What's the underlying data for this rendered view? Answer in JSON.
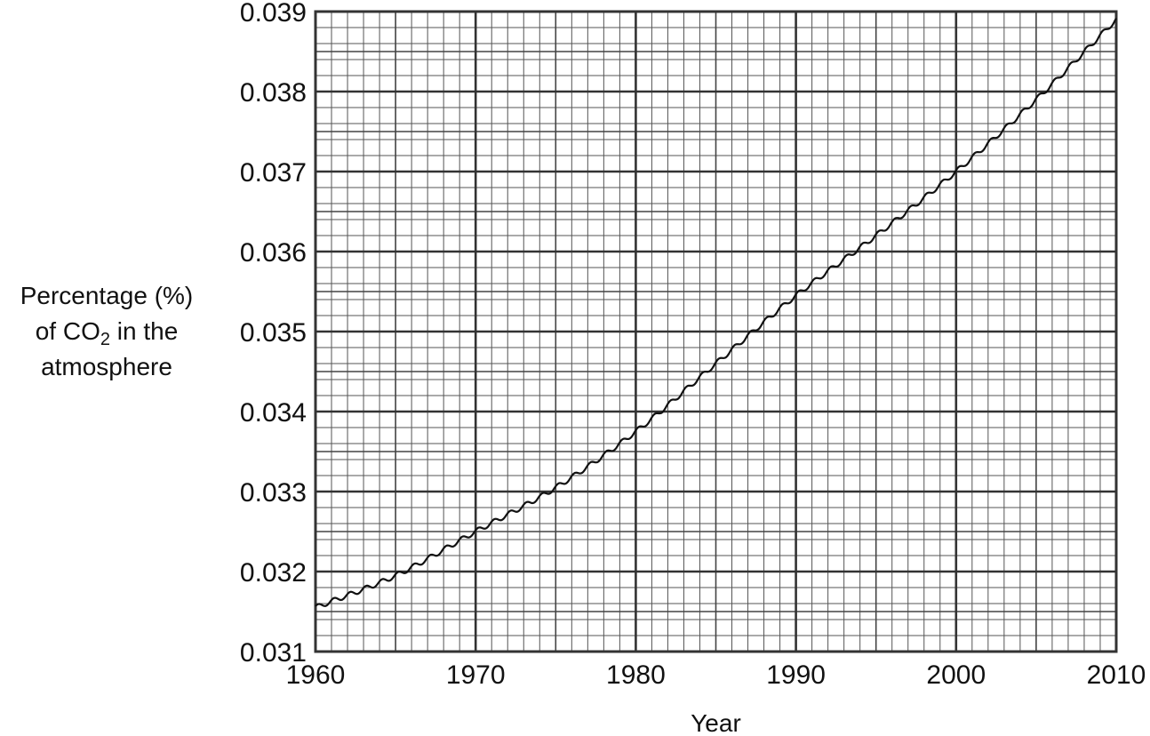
{
  "chart_data": {
    "type": "line",
    "title": "",
    "xlabel": "Year",
    "ylabel": {
      "line1": "Percentage (%)",
      "line2_prefix": "of CO",
      "line2_subscript": "2",
      "line2_suffix": " in the",
      "line3": "atmosphere"
    },
    "xlim": [
      1960,
      2010
    ],
    "ylim": [
      0.031,
      0.039
    ],
    "x_ticks": [
      1960,
      1970,
      1980,
      1990,
      2000,
      2010
    ],
    "x_tick_labels": [
      "1960",
      "1970",
      "1980",
      "1990",
      "2000",
      "2010"
    ],
    "y_ticks": [
      0.031,
      0.032,
      0.033,
      0.034,
      0.035,
      0.036,
      0.037,
      0.038,
      0.039
    ],
    "y_tick_labels": [
      "0.031",
      "0.032",
      "0.033",
      "0.034",
      "0.035",
      "0.036",
      "0.037",
      "0.038",
      "0.039"
    ],
    "grid": true,
    "series": [
      {
        "seasonal_amplitude": 3e-05,
        "x": [
          1960,
          1965,
          1970,
          1975,
          1980,
          1985,
          1990,
          1995,
          2000,
          2005,
          2010
        ],
        "y": [
          0.03155,
          0.03195,
          0.0325,
          0.03305,
          0.03375,
          0.0346,
          0.03545,
          0.0362,
          0.037,
          0.0379,
          0.0389
        ]
      }
    ]
  }
}
